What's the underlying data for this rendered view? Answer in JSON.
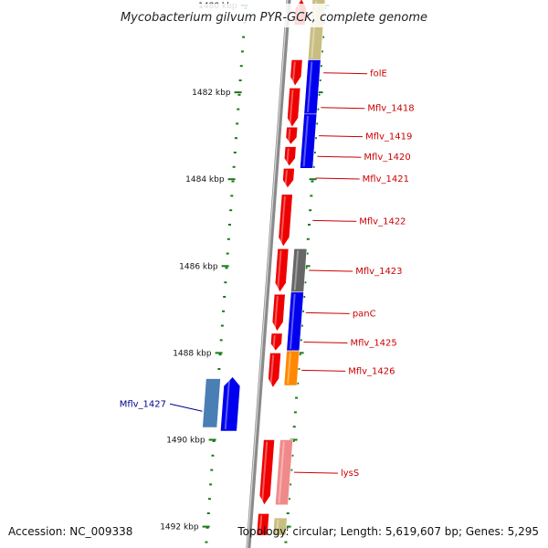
{
  "title": "Mycobacterium gilvum PYR-GCK, complete genome",
  "footer": {
    "accession": "Accession: NC_009338",
    "summary": "Topology: circular; Length: 5,619,607 bp; Genes: 5,295"
  },
  "colors": {
    "red": "#ee0000",
    "blue": "#0000ee",
    "grey": "#666666",
    "orange": "#ff8800",
    "pink": "#f08a8a",
    "khaki": "#c8be82",
    "steel": "#4a7fb5",
    "tick": "#1a7a1a",
    "axis": "#8a8a8a",
    "label_forward": "#cc0000",
    "label_reverse": "#00008b"
  },
  "ticks": [
    {
      "kbp": 1480,
      "label": "1480 kbp"
    },
    {
      "kbp": 1482,
      "label": "1482 kbp"
    },
    {
      "kbp": 1484,
      "label": "1484 kbp"
    },
    {
      "kbp": 1486,
      "label": "1486 kbp"
    },
    {
      "kbp": 1488,
      "label": "1488 kbp"
    },
    {
      "kbp": 1490,
      "label": "1490 kbp"
    },
    {
      "kbp": 1492,
      "label": "1492 kbp"
    }
  ],
  "genes": [
    {
      "name": "",
      "start": 1479.85,
      "end": 1480.45,
      "lane": "outer_fwd",
      "color": "red",
      "arrow": "up"
    },
    {
      "name": "",
      "start": 1479.85,
      "end": 1481.25,
      "lane": "outer_rev",
      "color": "khaki",
      "arrow": "none"
    },
    {
      "name": "folE",
      "start": 1481.25,
      "end": 1481.85,
      "lane": "outer_fwd",
      "color": "red",
      "arrow": "down"
    },
    {
      "name": "",
      "start": 1481.25,
      "end": 1482.5,
      "lane": "outer_rev",
      "color": "blue",
      "arrow": "none"
    },
    {
      "name": "Mflv_1418",
      "start": 1481.9,
      "end": 1482.8,
      "lane": "outer_fwd",
      "color": "red",
      "arrow": "down"
    },
    {
      "name": "Mflv_1419",
      "start": 1482.8,
      "end": 1483.2,
      "lane": "outer_fwd",
      "color": "red",
      "arrow": "down"
    },
    {
      "name": "Mflv_1420",
      "start": 1483.25,
      "end": 1483.7,
      "lane": "outer_fwd",
      "color": "red",
      "arrow": "down"
    },
    {
      "name": "",
      "start": 1482.5,
      "end": 1483.75,
      "lane": "outer_rev",
      "color": "blue",
      "arrow": "none"
    },
    {
      "name": "Mflv_1421",
      "start": 1483.75,
      "end": 1484.2,
      "lane": "outer_fwd",
      "color": "red",
      "arrow": "down"
    },
    {
      "name": "Mflv_1422",
      "start": 1484.35,
      "end": 1485.55,
      "lane": "outer_fwd",
      "color": "red",
      "arrow": "down"
    },
    {
      "name": "Mflv_1423",
      "start": 1485.6,
      "end": 1486.6,
      "lane": "outer_fwd",
      "color": "red",
      "arrow": "down"
    },
    {
      "name": "",
      "start": 1485.6,
      "end": 1486.6,
      "lane": "outer_rev",
      "color": "grey",
      "arrow": "none"
    },
    {
      "name": "panC",
      "start": 1486.65,
      "end": 1487.5,
      "lane": "outer_fwd",
      "color": "red",
      "arrow": "down"
    },
    {
      "name": "",
      "start": 1486.6,
      "end": 1487.95,
      "lane": "outer_rev",
      "color": "blue",
      "arrow": "none"
    },
    {
      "name": "Mflv_1425",
      "start": 1487.55,
      "end": 1487.95,
      "lane": "outer_fwd",
      "color": "red",
      "arrow": "down"
    },
    {
      "name": "Mflv_1426",
      "start": 1488.0,
      "end": 1488.8,
      "lane": "outer_fwd",
      "color": "red",
      "arrow": "down"
    },
    {
      "name": "",
      "start": 1487.95,
      "end": 1488.75,
      "lane": "outer_rev",
      "color": "orange",
      "arrow": "none"
    },
    {
      "name": "Mflv_1427",
      "start": 1488.55,
      "end": 1489.8,
      "lane": "inner",
      "color": "blue",
      "arrow": "up",
      "shade": "steel"
    },
    {
      "name": "lysS",
      "start": 1490.0,
      "end": 1491.5,
      "lane": "outer_fwd",
      "color": "red",
      "arrow": "down"
    },
    {
      "name": "",
      "start": 1490.0,
      "end": 1491.5,
      "lane": "outer_rev",
      "color": "pink",
      "arrow": "none"
    },
    {
      "name": "",
      "start": 1491.7,
      "end": 1492.2,
      "lane": "outer_fwd",
      "color": "red",
      "arrow": "none"
    },
    {
      "name": "",
      "start": 1491.8,
      "end": 1492.2,
      "lane": "outer_rev",
      "color": "khaki",
      "arrow": "none"
    }
  ]
}
